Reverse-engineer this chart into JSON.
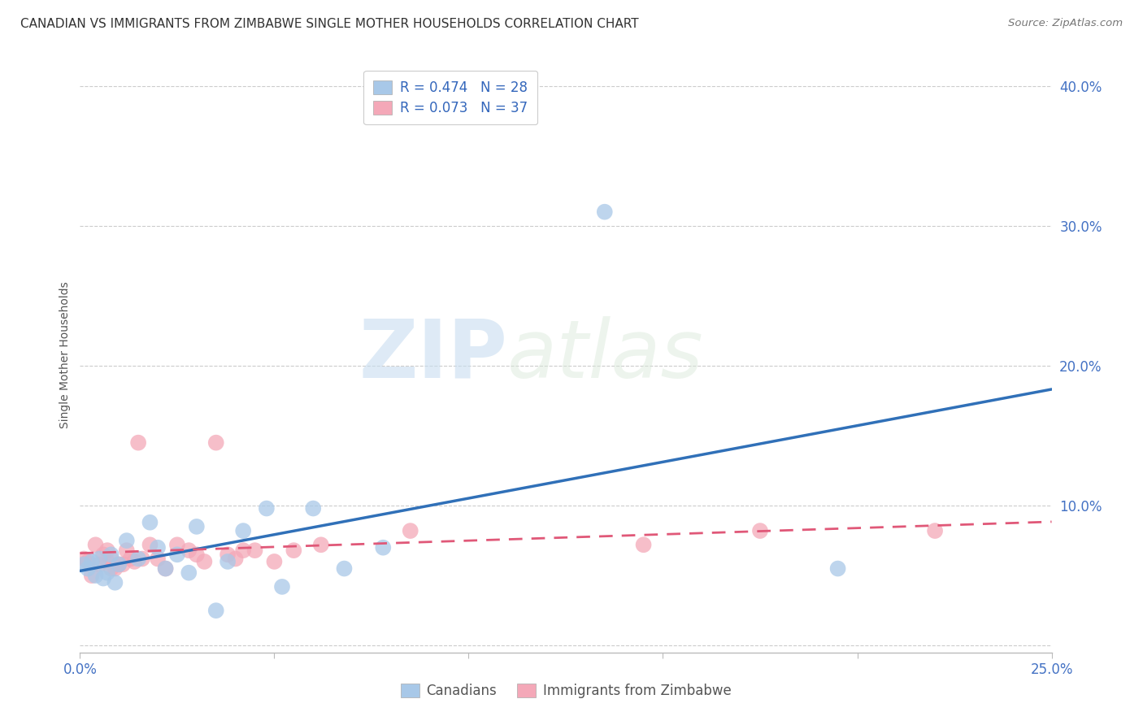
{
  "title": "CANADIAN VS IMMIGRANTS FROM ZIMBABWE SINGLE MOTHER HOUSEHOLDS CORRELATION CHART",
  "source": "Source: ZipAtlas.com",
  "ylabel": "Single Mother Households",
  "xlim": [
    0.0,
    0.25
  ],
  "ylim": [
    -0.005,
    0.42
  ],
  "background_color": "#ffffff",
  "watermark_zip": "ZIP",
  "watermark_atlas": "atlas",
  "canadian_color": "#a8c8e8",
  "zimbabwe_color": "#f4a8b8",
  "trendline_canadian_color": "#3070b8",
  "trendline_zimbabwe_color": "#e05878",
  "legend_canadian_label": "R = 0.474   N = 28",
  "legend_zimbabwe_label": "R = 0.073   N = 37",
  "bottom_legend_canadian": "Canadians",
  "bottom_legend_zimbabwe": "Immigrants from Zimbabwe",
  "grid_color": "#cccccc",
  "tick_color": "#4472c4",
  "canadians_x": [
    0.001,
    0.002,
    0.003,
    0.004,
    0.005,
    0.006,
    0.007,
    0.008,
    0.009,
    0.01,
    0.012,
    0.015,
    0.018,
    0.02,
    0.022,
    0.025,
    0.028,
    0.03,
    0.035,
    0.038,
    0.042,
    0.048,
    0.052,
    0.06,
    0.068,
    0.078,
    0.135,
    0.195
  ],
  "canadians_y": [
    0.058,
    0.055,
    0.06,
    0.05,
    0.062,
    0.048,
    0.052,
    0.065,
    0.045,
    0.058,
    0.075,
    0.062,
    0.088,
    0.07,
    0.055,
    0.065,
    0.052,
    0.085,
    0.025,
    0.06,
    0.082,
    0.098,
    0.042,
    0.098,
    0.055,
    0.07,
    0.31,
    0.055
  ],
  "zimbabwe_x": [
    0.001,
    0.002,
    0.003,
    0.004,
    0.005,
    0.006,
    0.007,
    0.007,
    0.008,
    0.008,
    0.009,
    0.01,
    0.011,
    0.012,
    0.013,
    0.014,
    0.015,
    0.016,
    0.018,
    0.02,
    0.022,
    0.025,
    0.028,
    0.03,
    0.032,
    0.035,
    0.038,
    0.04,
    0.042,
    0.045,
    0.05,
    0.055,
    0.062,
    0.085,
    0.145,
    0.175,
    0.22
  ],
  "zimbabwe_y": [
    0.062,
    0.06,
    0.05,
    0.072,
    0.058,
    0.065,
    0.068,
    0.06,
    0.055,
    0.062,
    0.055,
    0.058,
    0.058,
    0.068,
    0.062,
    0.06,
    0.145,
    0.062,
    0.072,
    0.062,
    0.055,
    0.072,
    0.068,
    0.065,
    0.06,
    0.145,
    0.065,
    0.062,
    0.068,
    0.068,
    0.06,
    0.068,
    0.072,
    0.082,
    0.072,
    0.082,
    0.082
  ]
}
